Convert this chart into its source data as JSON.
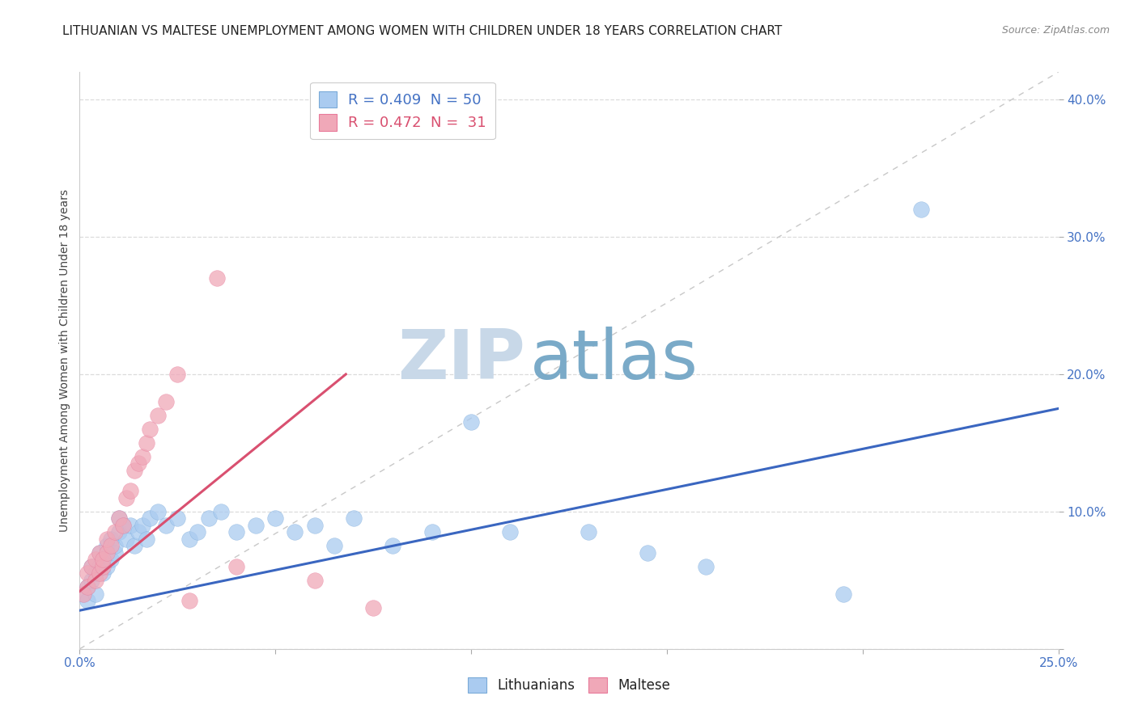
{
  "title": "LITHUANIAN VS MALTESE UNEMPLOYMENT AMONG WOMEN WITH CHILDREN UNDER 18 YEARS CORRELATION CHART",
  "source": "Source: ZipAtlas.com",
  "ylabel": "Unemployment Among Women with Children Under 18 years",
  "xlim": [
    0.0,
    0.25
  ],
  "ylim": [
    0.0,
    0.42
  ],
  "blue_scatter_x": [
    0.001,
    0.002,
    0.002,
    0.003,
    0.003,
    0.004,
    0.004,
    0.005,
    0.005,
    0.006,
    0.006,
    0.007,
    0.007,
    0.008,
    0.008,
    0.009,
    0.009,
    0.01,
    0.01,
    0.011,
    0.012,
    0.013,
    0.014,
    0.015,
    0.016,
    0.017,
    0.018,
    0.02,
    0.022,
    0.025,
    0.028,
    0.03,
    0.033,
    0.036,
    0.04,
    0.045,
    0.05,
    0.055,
    0.06,
    0.065,
    0.07,
    0.08,
    0.09,
    0.1,
    0.11,
    0.13,
    0.145,
    0.16,
    0.195,
    0.215
  ],
  "blue_scatter_y": [
    0.04,
    0.045,
    0.035,
    0.05,
    0.06,
    0.055,
    0.04,
    0.06,
    0.07,
    0.055,
    0.065,
    0.06,
    0.075,
    0.065,
    0.08,
    0.07,
    0.075,
    0.085,
    0.095,
    0.09,
    0.08,
    0.09,
    0.075,
    0.085,
    0.09,
    0.08,
    0.095,
    0.1,
    0.09,
    0.095,
    0.08,
    0.085,
    0.095,
    0.1,
    0.085,
    0.09,
    0.095,
    0.085,
    0.09,
    0.075,
    0.095,
    0.075,
    0.085,
    0.165,
    0.085,
    0.085,
    0.07,
    0.06,
    0.04,
    0.32
  ],
  "pink_scatter_x": [
    0.001,
    0.002,
    0.002,
    0.003,
    0.004,
    0.004,
    0.005,
    0.005,
    0.006,
    0.006,
    0.007,
    0.007,
    0.008,
    0.009,
    0.01,
    0.011,
    0.012,
    0.013,
    0.014,
    0.015,
    0.016,
    0.017,
    0.018,
    0.02,
    0.022,
    0.025,
    0.028,
    0.035,
    0.04,
    0.06,
    0.075
  ],
  "pink_scatter_y": [
    0.04,
    0.055,
    0.045,
    0.06,
    0.065,
    0.05,
    0.07,
    0.055,
    0.06,
    0.065,
    0.07,
    0.08,
    0.075,
    0.085,
    0.095,
    0.09,
    0.11,
    0.115,
    0.13,
    0.135,
    0.14,
    0.15,
    0.16,
    0.17,
    0.18,
    0.2,
    0.035,
    0.27,
    0.06,
    0.05,
    0.03
  ],
  "blue_line_x": [
    0.0,
    0.25
  ],
  "blue_line_y": [
    0.028,
    0.175
  ],
  "pink_line_x": [
    0.0,
    0.068
  ],
  "pink_line_y": [
    0.042,
    0.2
  ],
  "ref_line_x": [
    0.0,
    0.25
  ],
  "ref_line_y": [
    0.0,
    0.42
  ],
  "blue_color": "#aacbf0",
  "pink_color": "#f0a8b8",
  "blue_edge_color": "#7aaad8",
  "pink_edge_color": "#e87a9a",
  "blue_line_color": "#3a66c0",
  "pink_line_color": "#d95070",
  "ref_line_color": "#c8c8c8",
  "watermark_zip": "ZIP",
  "watermark_atlas": "atlas",
  "watermark_zip_color": "#c8d8e8",
  "watermark_atlas_color": "#7aaac8",
  "background_color": "#ffffff",
  "title_fontsize": 11,
  "axis_label_fontsize": 10,
  "tick_fontsize": 11
}
